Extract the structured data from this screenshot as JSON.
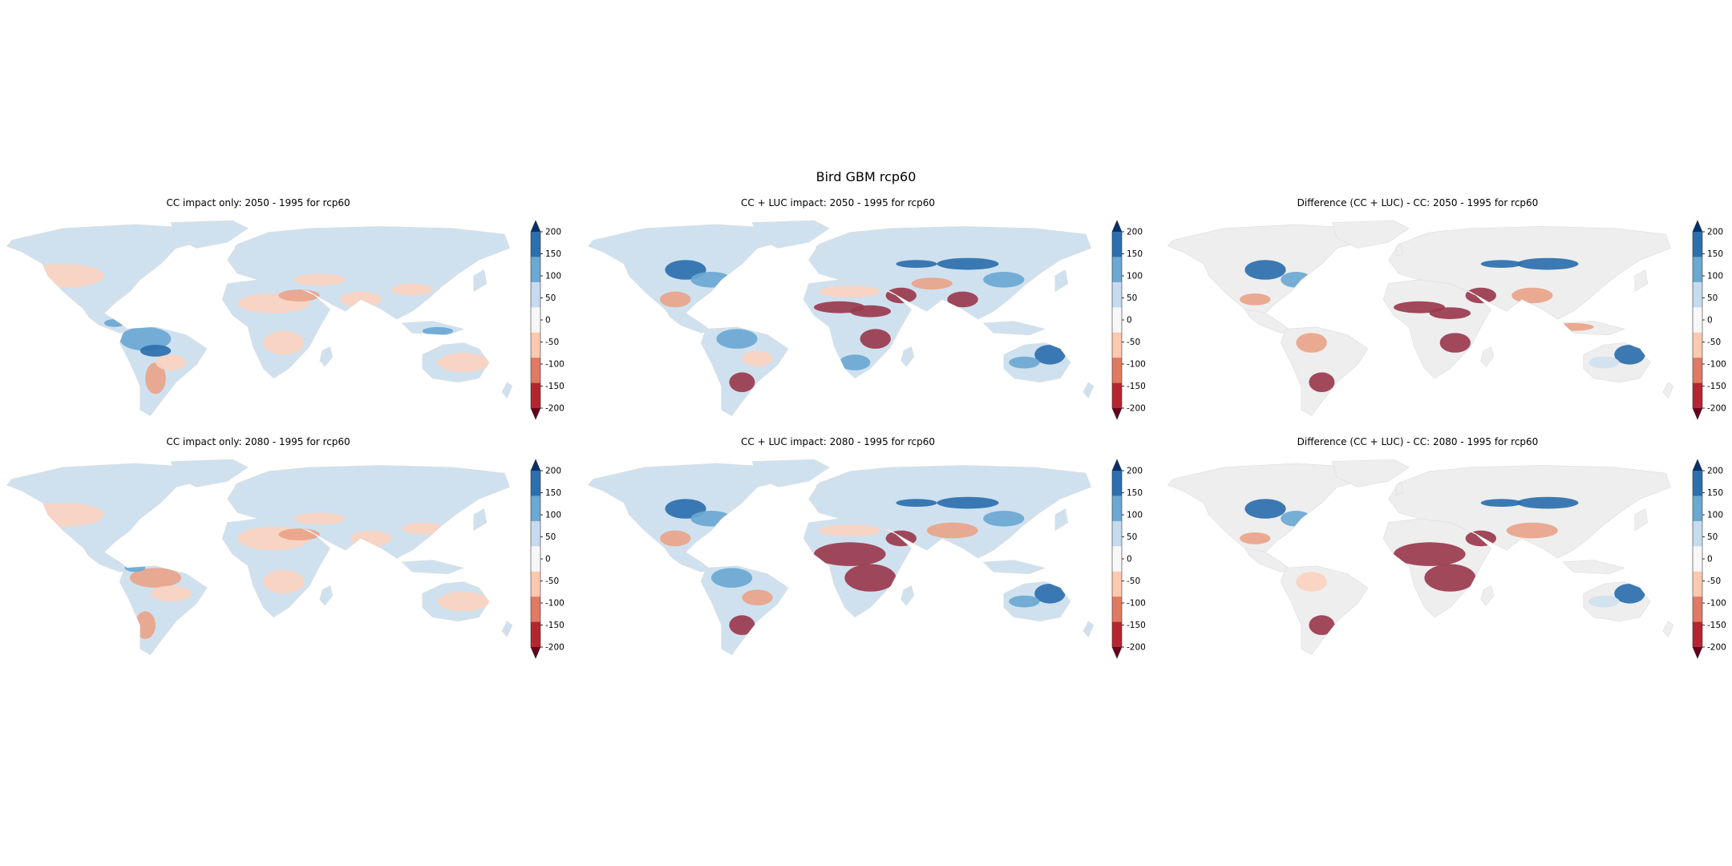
{
  "figure": {
    "title": "Bird GBM rcp60"
  },
  "panels": [
    {
      "title": "CC impact only: 2050 - 1995 for rcp60",
      "profile": "cc50"
    },
    {
      "title": "CC + LUC impact: 2050 - 1995 for rcp60",
      "profile": "luc50"
    },
    {
      "title": "Difference (CC + LUC) - CC: 2050 - 1995 for rcp60",
      "profile": "diff50"
    },
    {
      "title": "CC impact only: 2080 - 1995 for rcp60",
      "profile": "cc80"
    },
    {
      "title": "CC + LUC impact: 2080 - 1995 for rcp60",
      "profile": "luc80"
    },
    {
      "title": "Difference (CC + LUC) - CC: 2080 - 1995 for rcp60",
      "profile": "diff80"
    }
  ],
  "colorbar": {
    "ticks": [
      "200",
      "150",
      "100",
      "50",
      "0",
      "-50",
      "-100",
      "-150",
      "-200"
    ],
    "colors": [
      "#08306b",
      "#2c6fae",
      "#6ba8d2",
      "#c6dbef",
      "#f7f7f7",
      "#fcc9b0",
      "#e07a62",
      "#b62530",
      "#67001f"
    ],
    "extend": "both"
  },
  "palette": {
    "no_change": "#eeeeee",
    "light_blue": "#cfe1ef",
    "mid_blue": "#6ba8d2",
    "dark_blue": "#2c6fae",
    "light_red": "#fbd3bf",
    "mid_red": "#e9a48a",
    "dark_red": "#9a3a4e"
  }
}
